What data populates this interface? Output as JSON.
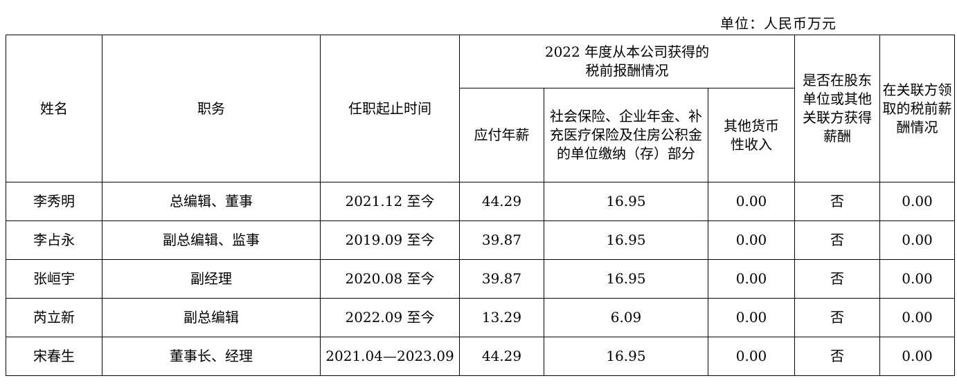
{
  "unit": "单位：人民币万元",
  "header": {
    "name": "姓名",
    "position": "职务",
    "term": "任职起止时间",
    "group": [
      "2022 年度从本公司获得的",
      "税前报酬情况"
    ],
    "salary": "应付年薪",
    "insurance": "社会保险、企业年金、补充医疗保险及住房公积金的单位缴纳（存）部分",
    "other_income": "其他货币性收入",
    "shareholder_paid": "是否在股东单位或其他关联方获得薪酬",
    "related_pay": "在关联方领取的税前薪酬情况"
  },
  "table": {
    "rows": [
      [
        "李秀明",
        "总编辑、董事",
        "2021.12 至今",
        "44.29",
        "16.95",
        "0.00",
        "否",
        "0.00"
      ],
      [
        "李占永",
        "副总编辑、监事",
        "2019.09 至今",
        "39.87",
        "16.95",
        "0.00",
        "否",
        "0.00"
      ],
      [
        "张峘宇",
        "副经理",
        "2020.08 至今",
        "39.87",
        "16.95",
        "0.00",
        "否",
        "0.00"
      ],
      [
        "芮立新",
        "副总编辑",
        "2022.09 至今",
        "13.29",
        "6.09",
        "0.00",
        "否",
        "0.00"
      ],
      [
        "宋春生",
        "董事长、经理",
        "2021.04—2023.09",
        "44.29",
        "16.95",
        "0.00",
        "否",
        "0.00"
      ]
    ]
  }
}
